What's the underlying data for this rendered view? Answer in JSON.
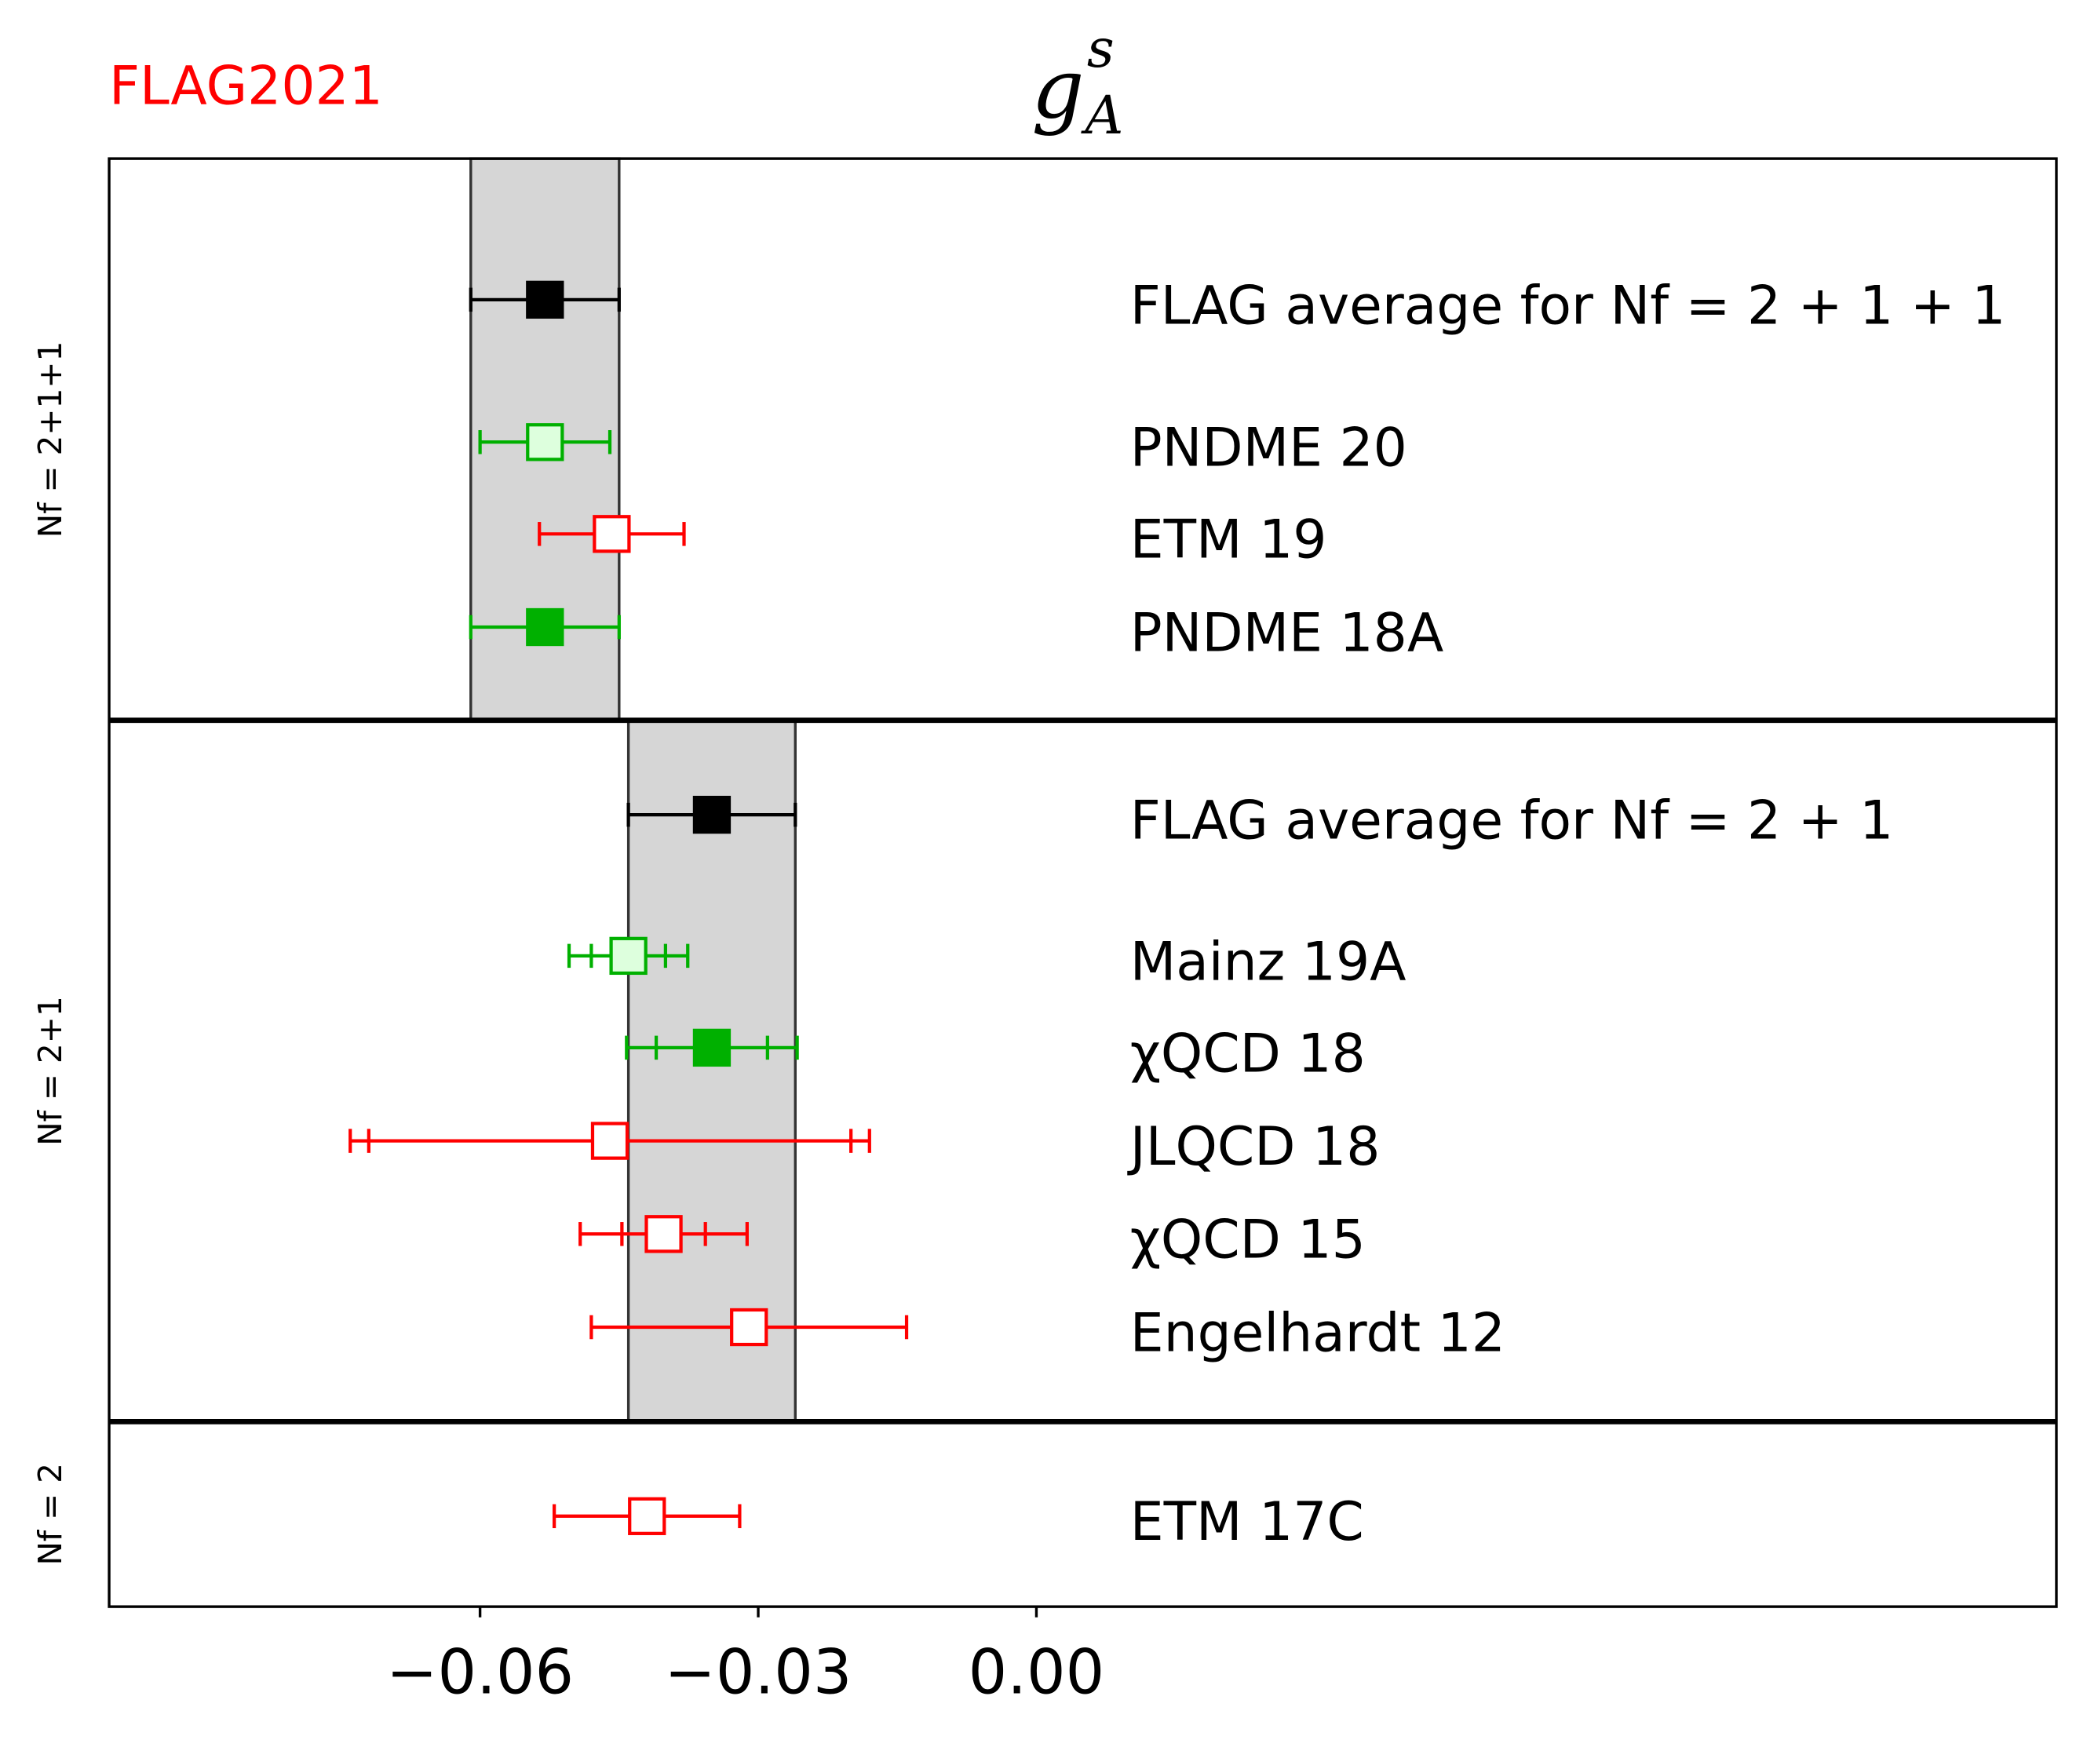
{
  "chart_data": {
    "type": "errorbar",
    "brand": "FLAG2021",
    "title": {
      "symbol": "g",
      "subscript": "A",
      "superscript": "s"
    },
    "xlim": [
      -0.1,
      0.11
    ],
    "xticks": [
      {
        "value": -0.06,
        "label": "−0.06"
      },
      {
        "value": -0.03,
        "label": "−0.03"
      },
      {
        "value": 0,
        "label": "0.00"
      }
    ],
    "groups": [
      {
        "label": "Nf = 2+1+1",
        "average": {
          "name": "FLAG average for Nf = 2 + 1 + 1",
          "value": -0.053,
          "err": 0.008,
          "color": "#000000"
        },
        "studies": [
          {
            "name": "PNDME 20",
            "value": -0.053,
            "err": 0.007,
            "color": "#00b000",
            "fill": "#ddffdd"
          },
          {
            "name": "ETM 19",
            "value": -0.0458,
            "err": 0.0078,
            "color": "#ff0000",
            "fill": "#ffffff"
          },
          {
            "name": "PNDME 18A",
            "value": -0.053,
            "err": 0.008,
            "color": "#00b000",
            "fill": "#00b000"
          }
        ]
      },
      {
        "label": "Nf = 2+1",
        "average": {
          "name": "FLAG average for Nf = 2 + 1",
          "value": -0.035,
          "err": 0.009,
          "color": "#000000"
        },
        "studies": [
          {
            "name": "Mainz 19A",
            "value": -0.044,
            "err": 0.0064,
            "stat_err": 0.004,
            "color": "#00b000",
            "fill": "#ddffdd"
          },
          {
            "name": "χQCD 18",
            "value": -0.035,
            "err": 0.0092,
            "stat_err": 0.006,
            "color": "#00b000",
            "fill": "#00b000"
          },
          {
            "name": "JLQCD 18",
            "value": -0.046,
            "err": 0.028,
            "stat_err": 0.026,
            "color": "#ff0000",
            "fill": "#ffffff"
          },
          {
            "name": "χQCD 15",
            "value": -0.0402,
            "err": 0.009,
            "stat_err": 0.0045,
            "color": "#ff0000",
            "fill": "#ffffff"
          },
          {
            "name": "Engelhardt 12",
            "value": -0.031,
            "err": 0.017,
            "color": "#ff0000",
            "fill": "#ffffff"
          }
        ]
      },
      {
        "label": "Nf = 2",
        "studies": [
          {
            "name": "ETM 17C",
            "value": -0.042,
            "err": 0.01,
            "color": "#ff0000",
            "fill": "#ffffff"
          }
        ]
      }
    ]
  }
}
